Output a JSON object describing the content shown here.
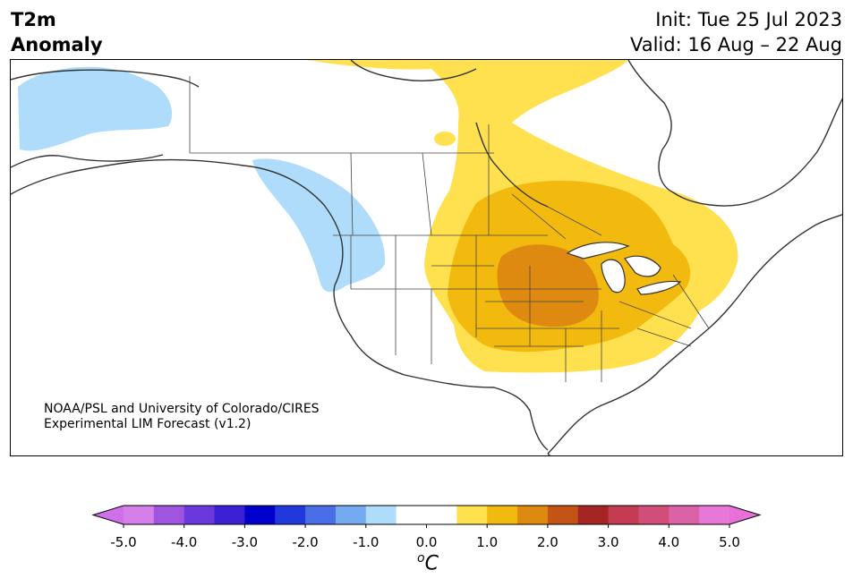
{
  "header": {
    "title_line1": "T2m",
    "title_line2": "Anomaly",
    "init": "Init: Tue 25 Jul 2023",
    "valid": "Valid: 16 Aug – 22 Aug"
  },
  "credit": {
    "line1": "NOAA/PSL and University of Colorado/CIRES",
    "line2": "Experimental LIM Forecast (v1.2)"
  },
  "colorbar": {
    "unit_base": "C",
    "unit_sup": "o",
    "tick_labels": [
      "-5.0",
      "-4.0",
      "-3.0",
      "-2.0",
      "-1.0",
      "0.0",
      "1.0",
      "2.0",
      "3.0",
      "4.0",
      "5.0"
    ],
    "colors": [
      "#d580e8",
      "#a055e0",
      "#6a38dd",
      "#3a1fd4",
      "#0000cc",
      "#2238dc",
      "#4a6ee6",
      "#74aaf0",
      "#aedcfa",
      "#ffffff",
      "#ffffff",
      "#ffe14f",
      "#f2b90f",
      "#de8a10",
      "#c45416",
      "#a52424",
      "#c43c52",
      "#d24e7a",
      "#dc62a8",
      "#e878d8"
    ],
    "extend_low": "#d070e8",
    "extend_high": "#e870d8"
  },
  "map": {
    "colors": {
      "cold_light": "#aedcfa",
      "warm_1": "#ffe14f",
      "warm_2": "#f2b90f",
      "warm_3": "#de8a10",
      "land": "#ffffff",
      "border": "#333333"
    }
  }
}
